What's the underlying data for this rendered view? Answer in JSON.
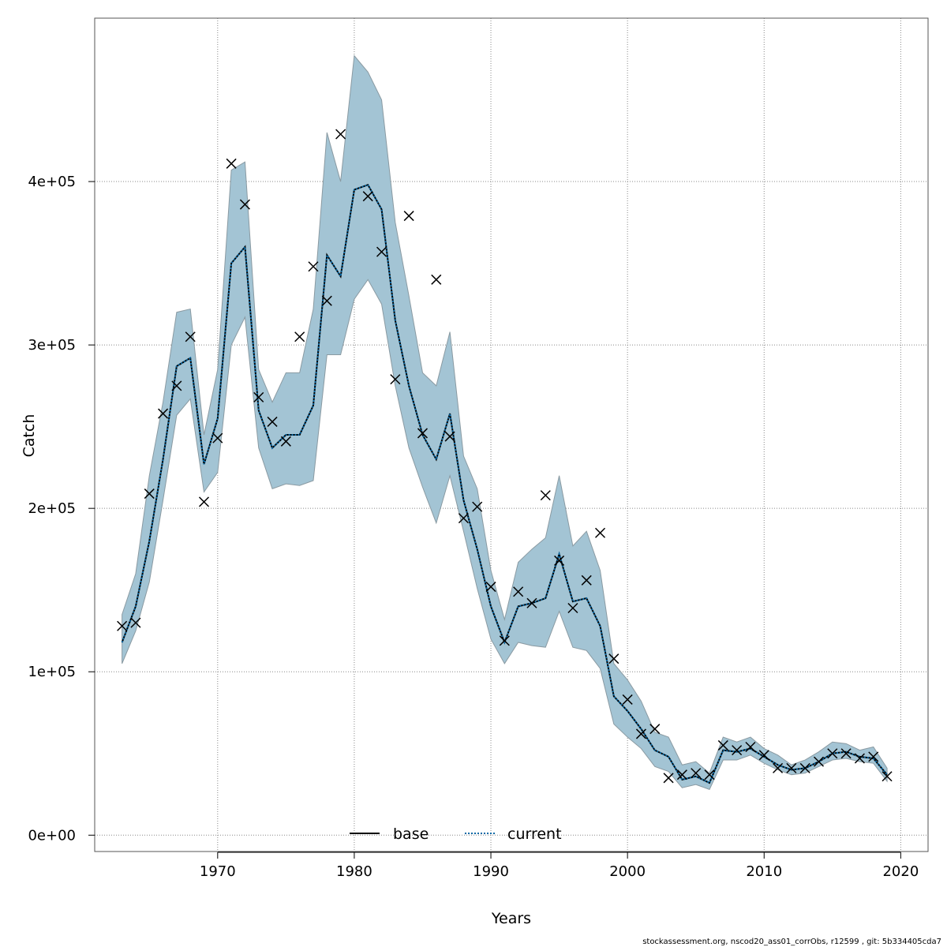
{
  "chart_data": {
    "type": "line",
    "title": "",
    "xlabel": "Years",
    "ylabel": "Catch",
    "xlim": [
      1961,
      2022
    ],
    "ylim": [
      -10000,
      500000
    ],
    "x_ticks": [
      1970,
      1980,
      1990,
      2000,
      2010,
      2020
    ],
    "x_tick_labels": [
      "1970",
      "1980",
      "1990",
      "2000",
      "2010",
      "2020"
    ],
    "y_ticks": [
      0,
      100000,
      200000,
      300000,
      400000
    ],
    "y_tick_labels": [
      "0e+00",
      "1e+05",
      "2e+05",
      "3e+05",
      "4e+05"
    ],
    "grid": true,
    "legend": {
      "placement": "bottom-center",
      "entries": [
        {
          "label": "base",
          "style": "solid",
          "color": "#000000"
        },
        {
          "label": "current",
          "style": "dotted",
          "color": "#0a6aa6"
        }
      ]
    },
    "colors": {
      "band_fill": "#a3c4d4",
      "band_stroke": "#8a9aa2",
      "grid": "#888888",
      "line": "#000000",
      "current_line": "#0a6aa6"
    },
    "years": [
      1963,
      1964,
      1965,
      1966,
      1967,
      1968,
      1969,
      1970,
      1971,
      1972,
      1973,
      1974,
      1975,
      1976,
      1977,
      1978,
      1979,
      1980,
      1981,
      1982,
      1983,
      1984,
      1985,
      1986,
      1987,
      1988,
      1989,
      1990,
      1991,
      1992,
      1993,
      1994,
      1995,
      1996,
      1997,
      1998,
      1999,
      2000,
      2001,
      2002,
      2003,
      2004,
      2005,
      2006,
      2007,
      2008,
      2009,
      2010,
      2011,
      2012,
      2013,
      2014,
      2015,
      2016,
      2017,
      2018,
      2019
    ],
    "series": [
      {
        "name": "base",
        "values": [
          118000,
          140000,
          180000,
          230000,
          287000,
          292000,
          227000,
          255000,
          350000,
          360000,
          260000,
          237000,
          245000,
          245000,
          263000,
          355000,
          342000,
          395000,
          398000,
          383000,
          315000,
          275000,
          245000,
          230000,
          258000,
          205000,
          175000,
          140000,
          118000,
          140000,
          142000,
          145000,
          172000,
          143000,
          145000,
          128000,
          85000,
          76000,
          65000,
          52000,
          48000,
          34000,
          36000,
          32000,
          52000,
          51000,
          53000,
          48000,
          43000,
          40000,
          41000,
          45000,
          50000,
          51000,
          48000,
          47000,
          37000
        ]
      },
      {
        "name": "current",
        "values": [
          118000,
          140000,
          180000,
          230000,
          287000,
          292000,
          227000,
          255000,
          350000,
          360000,
          260000,
          237000,
          245000,
          245000,
          263000,
          355000,
          342000,
          395000,
          398000,
          383000,
          315000,
          275000,
          245000,
          230000,
          258000,
          205000,
          175000,
          140000,
          118000,
          140000,
          142000,
          145000,
          172000,
          143000,
          145000,
          128000,
          85000,
          76000,
          65000,
          52000,
          48000,
          34000,
          36000,
          32000,
          52000,
          51000,
          53000,
          48000,
          43000,
          40000,
          41000,
          45000,
          50000,
          51000,
          48000,
          47000,
          37000
        ]
      }
    ],
    "band_upper": [
      135000,
      160000,
      220000,
      265000,
      320000,
      322000,
      245000,
      285000,
      407000,
      412000,
      285000,
      265000,
      283000,
      283000,
      322000,
      430000,
      400000,
      477000,
      467000,
      450000,
      375000,
      330000,
      283000,
      275000,
      308000,
      232000,
      212000,
      162000,
      132000,
      167000,
      175000,
      182000,
      220000,
      177000,
      186000,
      162000,
      105000,
      95000,
      82000,
      63000,
      60000,
      43000,
      45000,
      38000,
      60000,
      57000,
      60000,
      53000,
      49000,
      43000,
      46000,
      51000,
      57000,
      56000,
      52000,
      54000,
      41000
    ],
    "band_lower": [
      105000,
      125000,
      155000,
      205000,
      257000,
      267000,
      210000,
      222000,
      300000,
      317000,
      237000,
      212000,
      215000,
      214000,
      217000,
      294000,
      294000,
      328000,
      340000,
      325000,
      275000,
      237000,
      213000,
      191000,
      220000,
      186000,
      151000,
      120000,
      105000,
      118000,
      116000,
      115000,
      137000,
      115000,
      113000,
      102000,
      68000,
      60000,
      53000,
      42000,
      39000,
      29000,
      31000,
      28000,
      46000,
      46000,
      49000,
      44000,
      40000,
      37000,
      38000,
      42000,
      46000,
      47000,
      45000,
      44000,
      33000
    ],
    "observations": [
      128000,
      130000,
      209000,
      258000,
      275000,
      305000,
      204000,
      243000,
      411000,
      386000,
      268000,
      253000,
      241000,
      305000,
      348000,
      327000,
      429000,
      null,
      391000,
      357000,
      279000,
      379000,
      246000,
      340000,
      244000,
      194000,
      201000,
      152000,
      119000,
      149000,
      142000,
      208000,
      168000,
      139000,
      156000,
      185000,
      108000,
      83000,
      62000,
      65000,
      35000,
      37000,
      38000,
      37000,
      55000,
      52000,
      54000,
      49000,
      41000,
      41000,
      41000,
      45000,
      50000,
      50000,
      47000,
      48000,
      36000
    ]
  },
  "footer": {
    "text": "stockassessment.org, nscod20_ass01_corrObs, r12599 , git: 5b334405cda7"
  }
}
